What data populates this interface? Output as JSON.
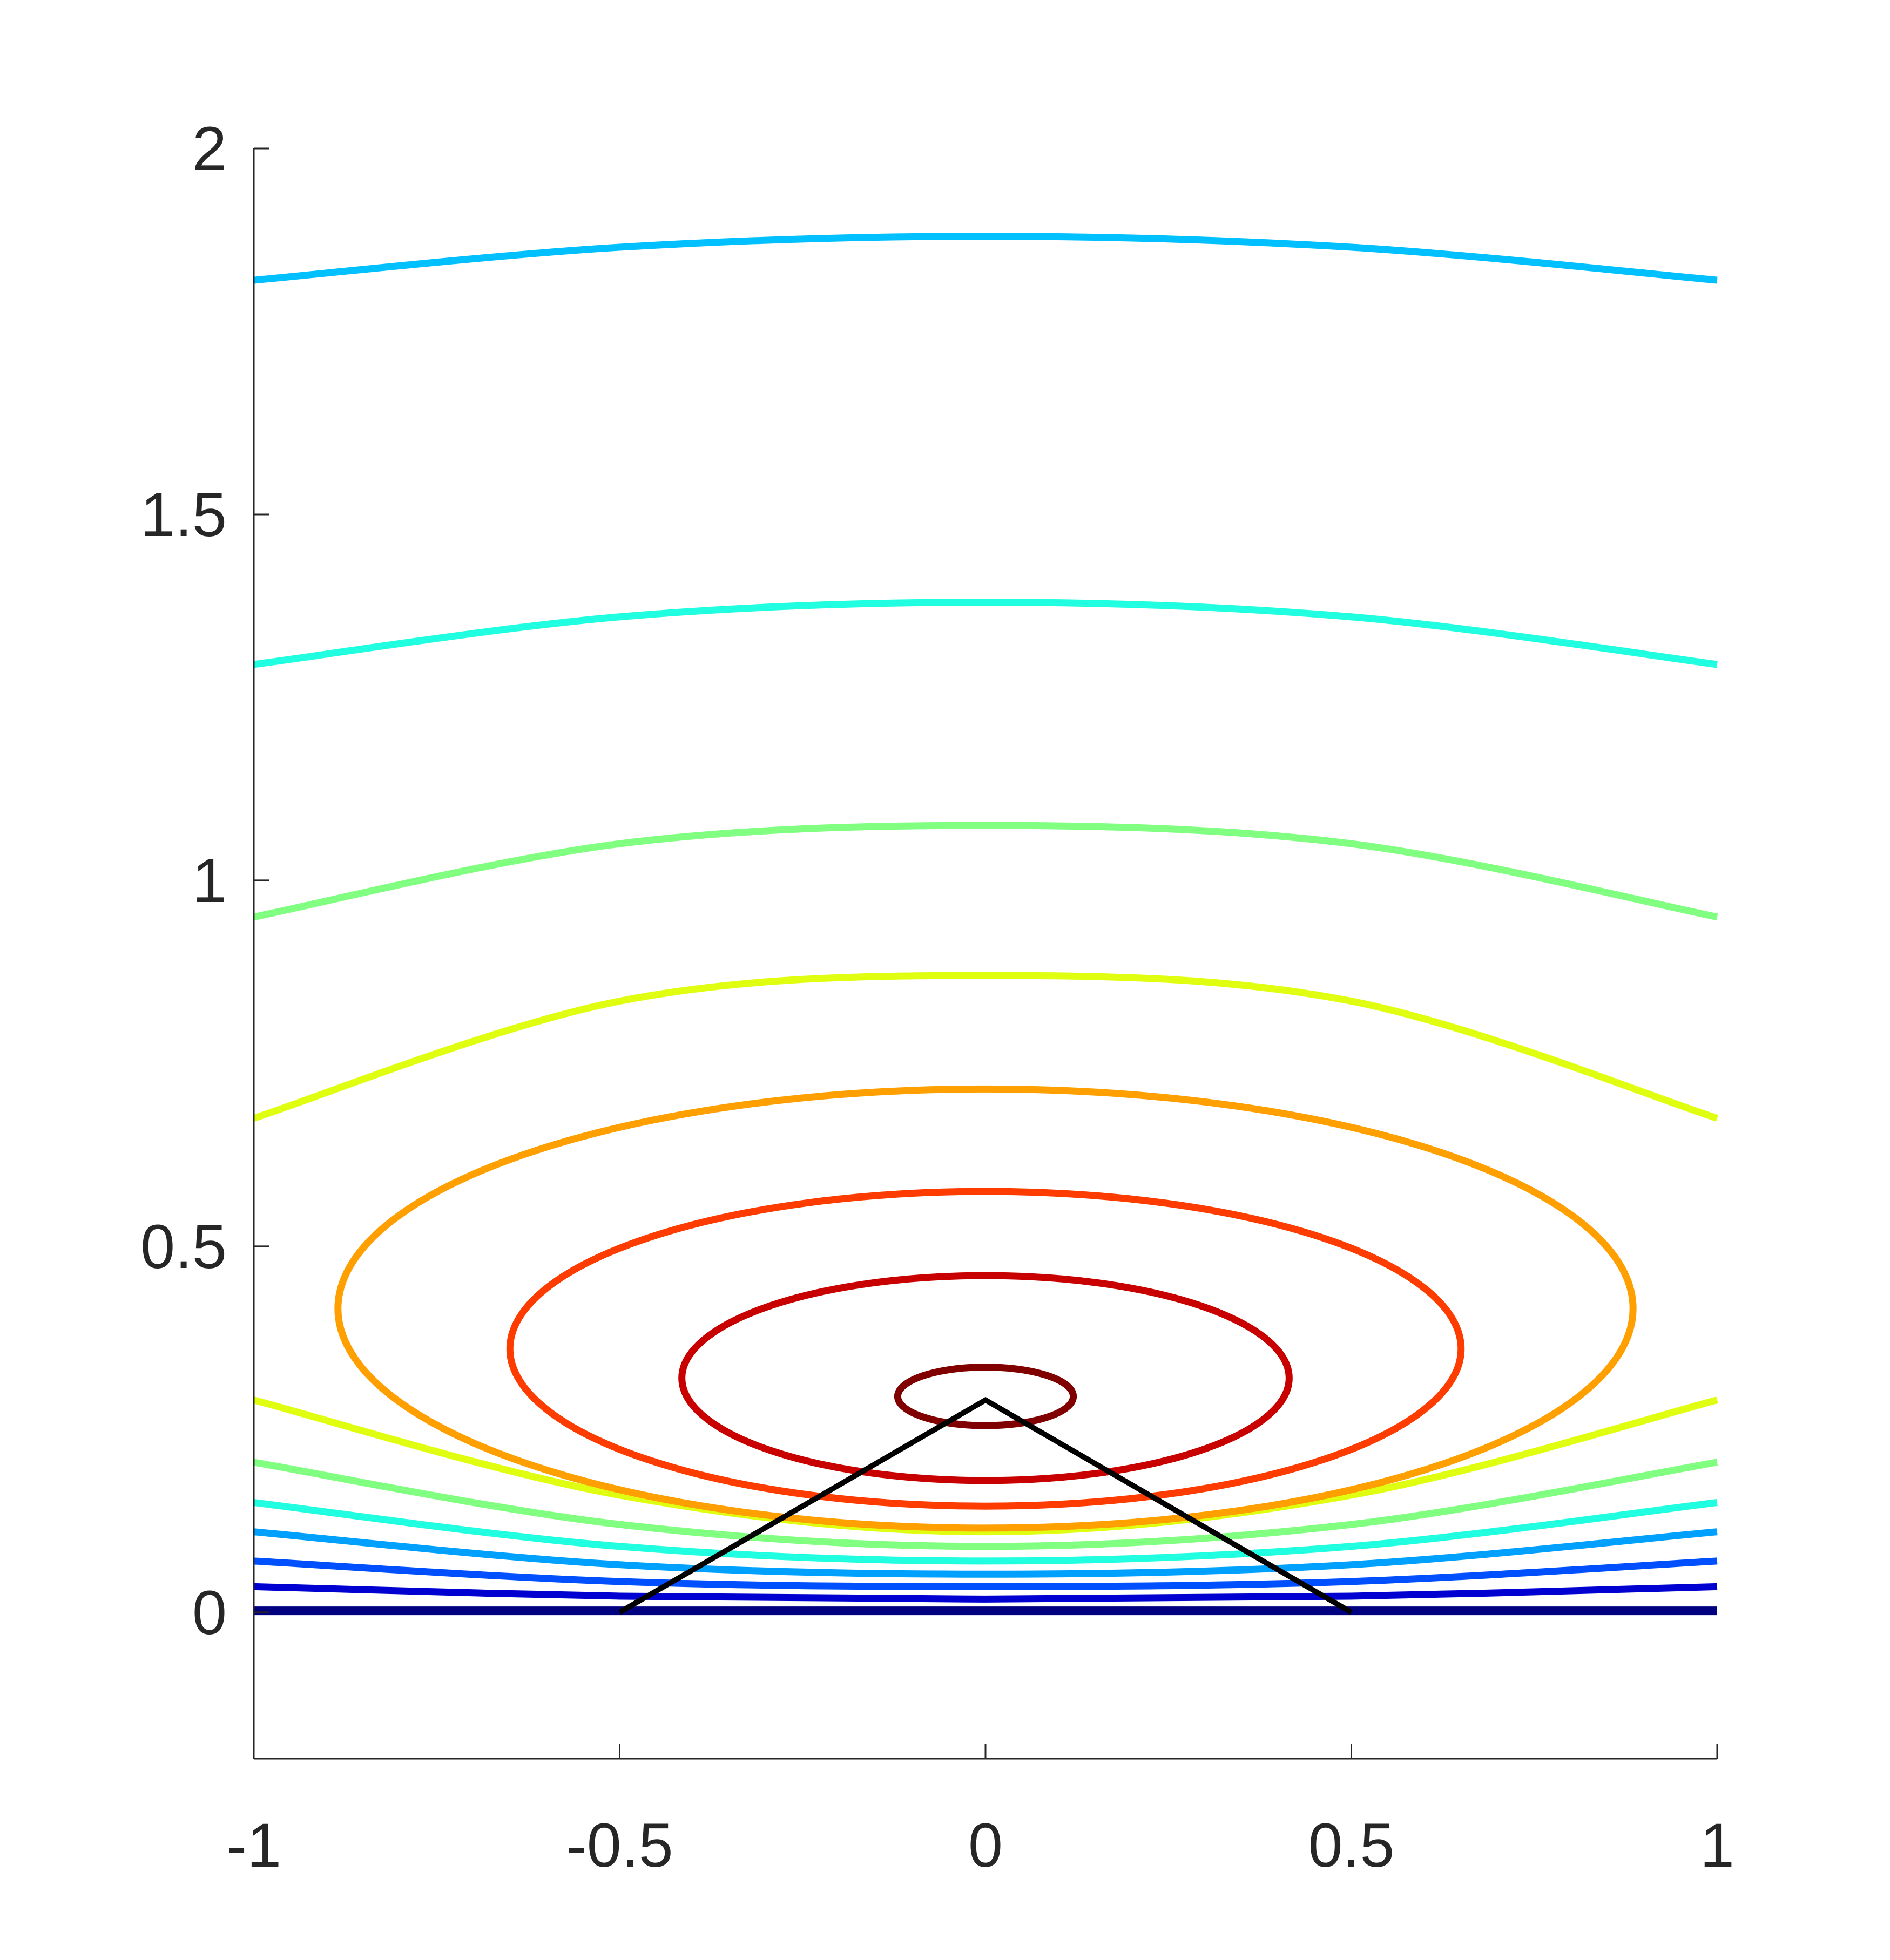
{
  "chart_data": {
    "type": "line",
    "subtype": "contour",
    "title": "",
    "xlabel": "",
    "ylabel": "",
    "xlim": [
      -1,
      1
    ],
    "ylim": [
      -0.2,
      2
    ],
    "x_ticks": [
      -1,
      -0.5,
      0,
      0.5,
      1
    ],
    "x_tick_labels": [
      "-1",
      "-0.5",
      "0",
      "0.5",
      "1"
    ],
    "y_ticks": [
      0,
      0.5,
      1,
      1.5,
      2
    ],
    "y_tick_labels": [
      "0",
      "0.5",
      "1",
      "1.5",
      "2"
    ],
    "grid": false,
    "legend": "none",
    "colormap": "jet",
    "contours": [
      {
        "shape": "open",
        "color": "#000080",
        "x": [
          -1,
          -0.5,
          0,
          0.5,
          1
        ],
        "y": [
          0.002,
          0.002,
          0.002,
          0.002,
          0.002
        ]
      },
      {
        "shape": "open",
        "color": "#0000d0",
        "x": [
          -1,
          -0.5,
          0,
          0.5,
          1
        ],
        "y": [
          0.035,
          0.022,
          0.018,
          0.022,
          0.035
        ]
      },
      {
        "shape": "open",
        "color": "#0050ff",
        "x": [
          -1,
          -0.5,
          0,
          0.5,
          1
        ],
        "y": [
          0.07,
          0.042,
          0.035,
          0.042,
          0.07
        ]
      },
      {
        "shape": "open",
        "color": "#00a0ff",
        "x": [
          -1,
          -0.5,
          0,
          0.5,
          1
        ],
        "y": [
          0.11,
          0.065,
          0.052,
          0.065,
          0.11
        ]
      },
      {
        "shape": "open",
        "color": "#20ffe0",
        "x": [
          -1,
          -0.5,
          0,
          0.5,
          1
        ],
        "y": [
          0.15,
          0.09,
          0.07,
          0.09,
          0.15
        ]
      },
      {
        "shape": "open",
        "color": "#80ff80",
        "x": [
          -1,
          -0.5,
          0,
          0.5,
          1
        ],
        "y": [
          0.205,
          0.12,
          0.09,
          0.12,
          0.205
        ]
      },
      {
        "shape": "open",
        "color": "#e0ff10",
        "x": [
          -1,
          -0.5,
          0,
          0.5,
          1
        ],
        "y": [
          0.29,
          0.16,
          0.11,
          0.16,
          0.29
        ]
      },
      {
        "shape": "closed",
        "color": "#ffa000",
        "cx": 0,
        "cy": 0.415,
        "rx": 0.885,
        "ry": 0.3
      },
      {
        "shape": "closed",
        "color": "#ff3c00",
        "cx": 0,
        "cy": 0.36,
        "rx": 0.65,
        "ry": 0.215
      },
      {
        "shape": "closed",
        "color": "#c80000",
        "cx": 0,
        "cy": 0.32,
        "rx": 0.415,
        "ry": 0.14
      },
      {
        "shape": "closed",
        "color": "#800000",
        "cx": 0,
        "cy": 0.295,
        "rx": 0.12,
        "ry": 0.04
      },
      {
        "shape": "open",
        "color": "#e0ff10",
        "x": [
          -1,
          -0.5,
          0,
          0.5,
          1
        ],
        "y": [
          0.675,
          0.835,
          0.87,
          0.835,
          0.675
        ]
      },
      {
        "shape": "open",
        "color": "#80ff80",
        "x": [
          -1,
          -0.5,
          0,
          0.5,
          1
        ],
        "y": [
          0.95,
          1.05,
          1.075,
          1.05,
          0.95
        ]
      },
      {
        "shape": "open",
        "color": "#20ffe0",
        "x": [
          -1,
          -0.5,
          0,
          0.5,
          1
        ],
        "y": [
          1.295,
          1.36,
          1.38,
          1.36,
          1.295
        ]
      },
      {
        "shape": "open",
        "color": "#00c0ff",
        "x": [
          -1,
          -0.5,
          0,
          0.5,
          1
        ],
        "y": [
          1.82,
          1.865,
          1.88,
          1.865,
          1.82
        ]
      }
    ],
    "series": [
      {
        "color": "#000000",
        "x": [
          -0.5,
          0,
          0.5
        ],
        "y": [
          0.0,
          0.29,
          0.0
        ]
      }
    ]
  }
}
